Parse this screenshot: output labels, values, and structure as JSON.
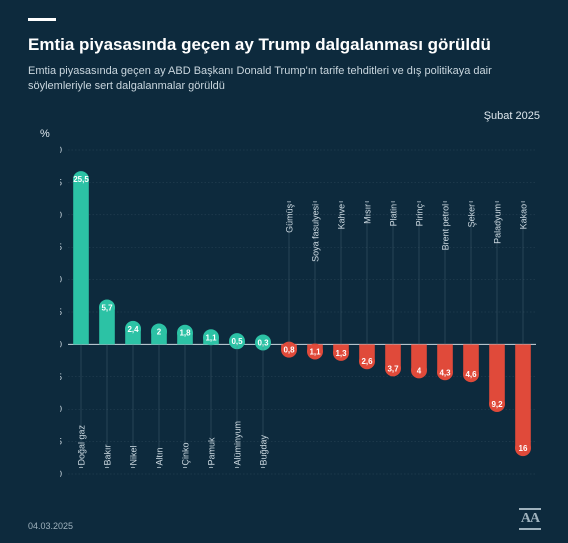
{
  "meta": {
    "title": "Emtia piyasasında geçen ay Trump dalgalanması görüldü",
    "subtitle": "Emtia piyasasında geçen ay ABD Başkanı Donald Trump'ın tarife tehditleri ve dış politikaya dair söylemleriyle sert dalgalanmalar görüldü",
    "period": "Şubat 2025",
    "date": "04.03.2025",
    "logo": "AA",
    "ylabel": "%"
  },
  "chart": {
    "type": "bar",
    "ylim": [
      -20,
      30
    ],
    "ytick_step": 5,
    "yticks": [
      -20,
      -15,
      -10,
      -5,
      0,
      5,
      10,
      15,
      20,
      25,
      30
    ],
    "background_color": "#0d2a3d",
    "grid_color": "#5b7484",
    "axis_color": "#c9d6de",
    "pos_bar_color": "#2cc2a5",
    "neg_bar_color": "#e04a3a",
    "value_label_color": "#ffffff",
    "category_label_color": "#c9d6de",
    "bar_width_ratio": 0.6,
    "value_fontsize": 8,
    "category_fontsize": 9,
    "ytick_fontsize": 9,
    "circle_radius": 8,
    "items": [
      {
        "label": "Doğal gaz",
        "value": 25.5,
        "display": "25,5"
      },
      {
        "label": "Bakır",
        "value": 5.7,
        "display": "5,7"
      },
      {
        "label": "Nikel",
        "value": 2.4,
        "display": "2,4"
      },
      {
        "label": "Altın",
        "value": 2.0,
        "display": "2"
      },
      {
        "label": "Çinko",
        "value": 1.8,
        "display": "1,8"
      },
      {
        "label": "Pamuk",
        "value": 1.1,
        "display": "1,1"
      },
      {
        "label": "Alüminyum",
        "value": 0.5,
        "display": "0,5"
      },
      {
        "label": "Buğday",
        "value": 0.3,
        "display": "0,3"
      },
      {
        "label": "Gümüş",
        "value": -0.8,
        "display": "0,8"
      },
      {
        "label": "Soya fasulyesi",
        "value": -1.1,
        "display": "1,1"
      },
      {
        "label": "Kahve",
        "value": -1.3,
        "display": "1,3"
      },
      {
        "label": "Mısır",
        "value": -2.6,
        "display": "2,6"
      },
      {
        "label": "Platin",
        "value": -3.7,
        "display": "3,7"
      },
      {
        "label": "Pirinç",
        "value": -4.0,
        "display": "4"
      },
      {
        "label": "Brent petrol",
        "value": -4.3,
        "display": "4,3"
      },
      {
        "label": "Şeker",
        "value": -4.6,
        "display": "4,6"
      },
      {
        "label": "Paladyum",
        "value": -9.2,
        "display": "9,2"
      },
      {
        "label": "Kakao",
        "value": -16.0,
        "display": "16"
      }
    ]
  }
}
